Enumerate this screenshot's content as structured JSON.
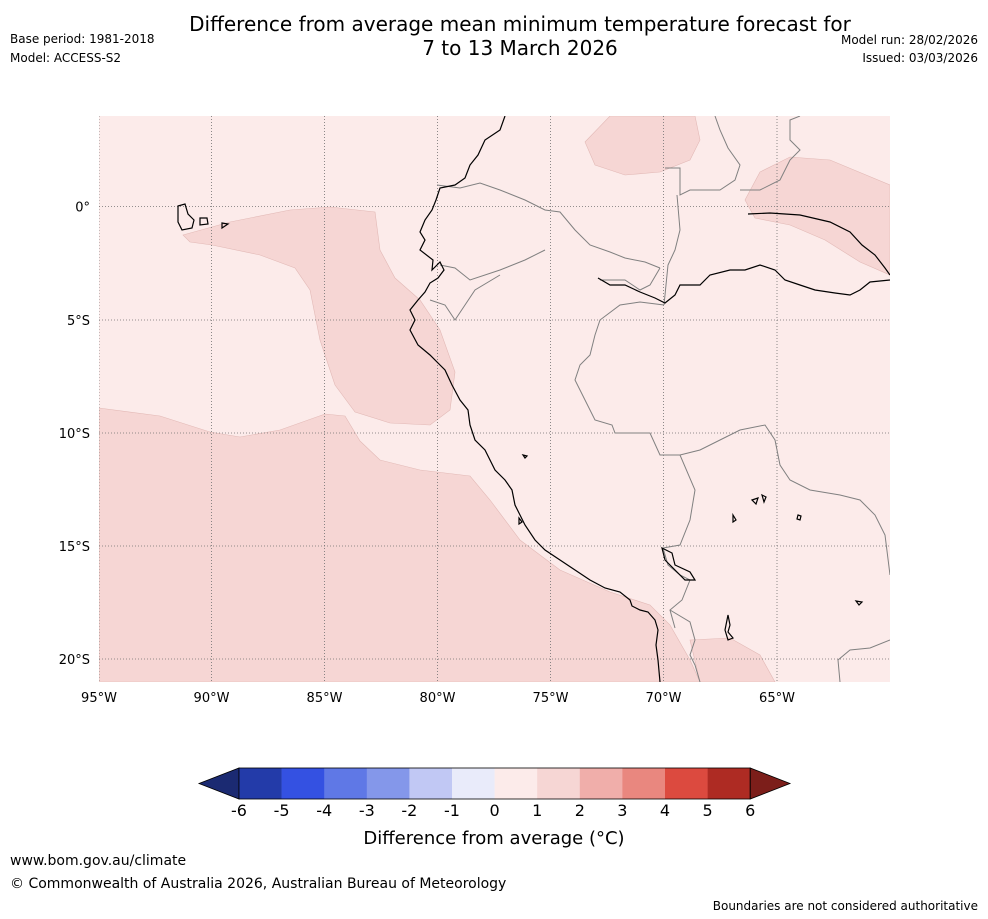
{
  "header": {
    "title": "Difference from average mean minimum temperature forecast for\n7 to 13 March 2026",
    "base_period": "Base period: 1981-2018",
    "model": "Model: ACCESS-S2",
    "model_run": "Model run: 28/02/2026",
    "issued": "Issued: 03/03/2026"
  },
  "map": {
    "lon_ticks": [
      "95°W",
      "90°W",
      "85°W",
      "80°W",
      "75°W",
      "70°W",
      "65°W"
    ],
    "lat_ticks": [
      "0°",
      "5°S",
      "10°S",
      "15°S",
      "20°S"
    ],
    "anomaly_colors": {
      "zero_to_one": "#fcebea",
      "one_to_two": "#f6d6d4",
      "border": "#808080",
      "coast": "#000000",
      "grid": "#707070"
    }
  },
  "colorbar": {
    "labels": [
      "-6",
      "-5",
      "-4",
      "-3",
      "-2",
      "-1",
      "0",
      "1",
      "2",
      "3",
      "4",
      "5",
      "6"
    ],
    "colors": [
      "#233ba9",
      "#3451e2",
      "#5f78e6",
      "#8497ea",
      "#c1c8f4",
      "#e9ebfa",
      "#fcebea",
      "#f6d6d4",
      "#f0aeaa",
      "#e9877f",
      "#dc4a3f",
      "#ae2b23"
    ],
    "low_extend_color": "#1b2a72",
    "high_extend_color": "#7c1e1a",
    "title": "Difference from average (°C)"
  },
  "footer": {
    "website": "www.bom.gov.au/climate",
    "copyright": "© Commonwealth of Australia 2026, Australian Bureau of Meteorology",
    "disclaimer": "Boundaries are not considered authoritative"
  }
}
